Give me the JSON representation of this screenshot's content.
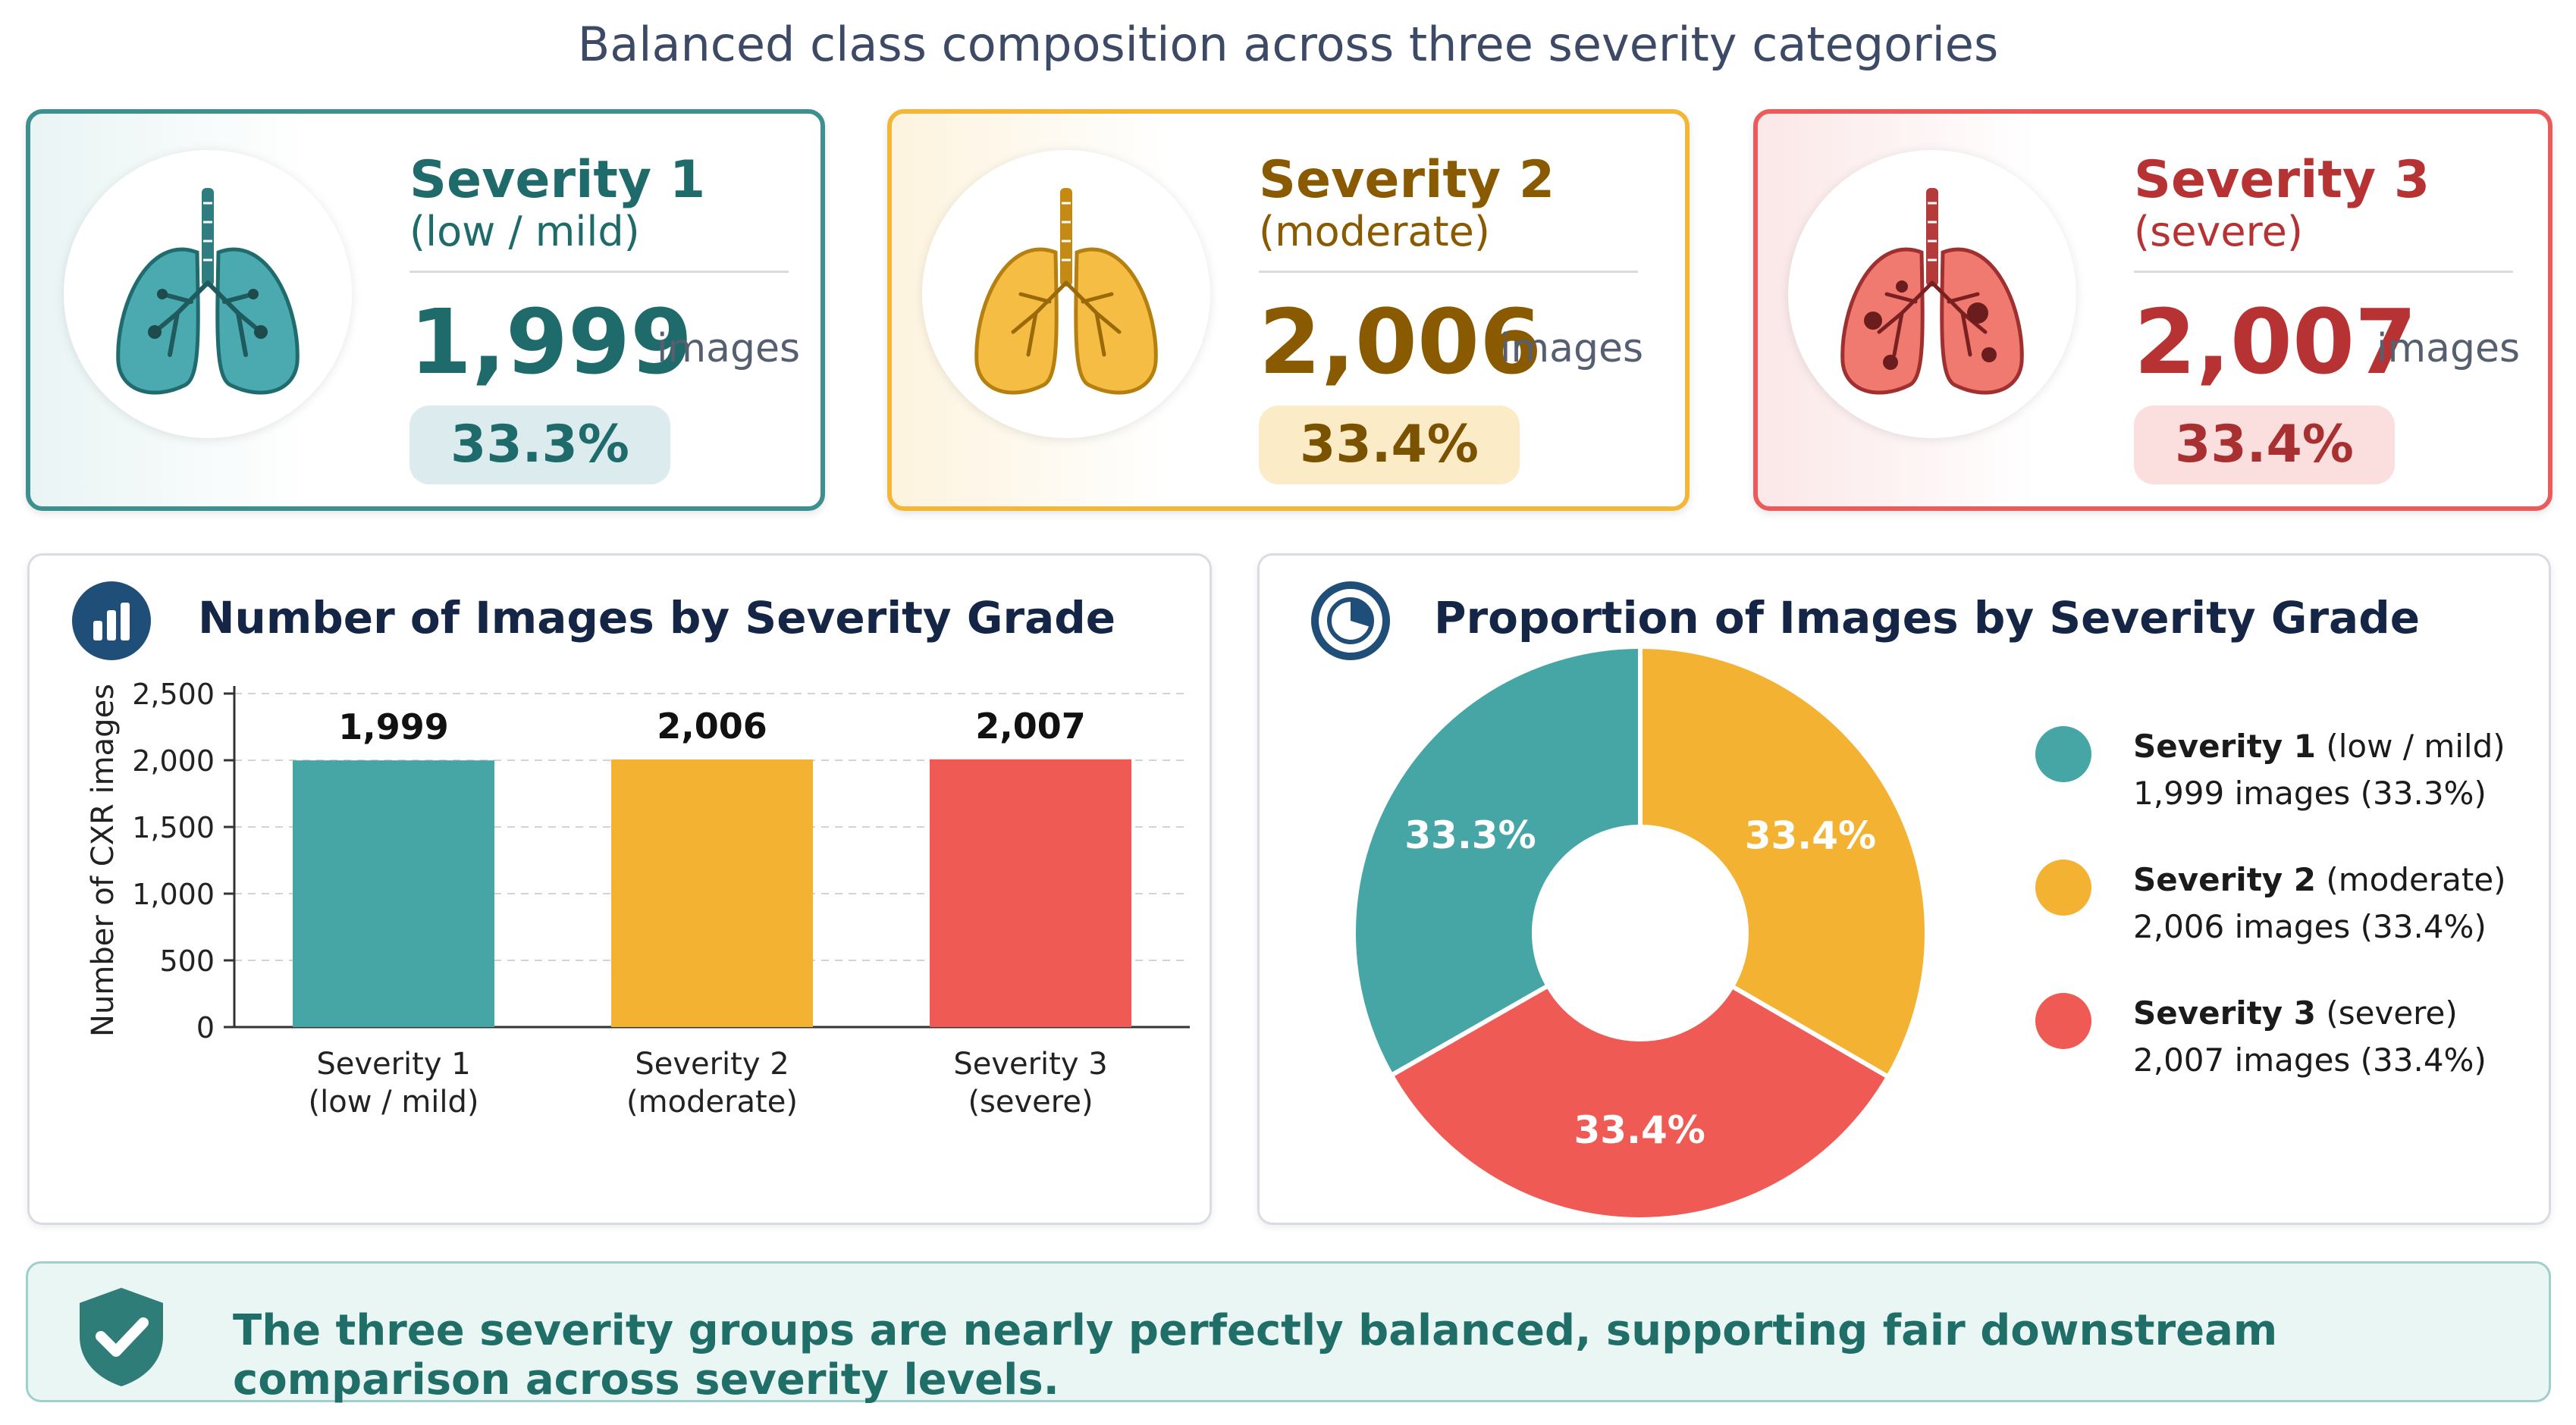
{
  "title": "Balanced class composition across three severity categories",
  "cards": [
    {
      "name": "Severity 1",
      "subtitle": "(low / mild)",
      "count": "1,999",
      "unit": "images",
      "percent": "33.3%",
      "color": "#3e9e9e"
    },
    {
      "name": "Severity 2",
      "subtitle": "(moderate)",
      "count": "2,006",
      "unit": "images",
      "percent": "33.4%",
      "color": "#f2b736"
    },
    {
      "name": "Severity 3",
      "subtitle": "(severe)",
      "count": "2,007",
      "unit": "images",
      "percent": "33.4%",
      "color": "#ef5a55"
    }
  ],
  "bar_panel": {
    "title": "Number of Images by Severity Grade",
    "icon": "bar-chart-icon"
  },
  "pie_panel": {
    "title": "Proportion of Images by Severity Grade",
    "icon": "pie-chart-icon"
  },
  "footer": {
    "text": "The three severity groups are nearly perfectly balanced, supporting fair downstream comparison across severity levels.",
    "icon": "shield-check-icon"
  },
  "chart_data": [
    {
      "type": "bar",
      "title": "Number of Images by Severity Grade",
      "categories": [
        [
          "Severity 1",
          "(low / mild)"
        ],
        [
          "Severity 2",
          "(moderate)"
        ],
        [
          "Severity 3",
          "(severe)"
        ]
      ],
      "values": [
        1999,
        2006,
        2007
      ],
      "value_labels": [
        "1,999",
        "2,006",
        "2,007"
      ],
      "colors": [
        "#46a6a6",
        "#f4b233",
        "#f05a54"
      ],
      "xlabel": "",
      "ylabel": "Number of CXR images",
      "ylim": [
        0,
        2500
      ],
      "yticks": [
        0,
        500,
        1000,
        1500,
        2000,
        2500
      ],
      "ytick_labels": [
        "0",
        "500",
        "1,000",
        "1,500",
        "2,000",
        "2,500"
      ],
      "grid": true
    },
    {
      "type": "pie",
      "title": "Proportion of Images by Severity Grade",
      "donut": true,
      "slices": [
        {
          "label": "Severity 1",
          "value": 33.3,
          "value_label": "33.3%",
          "color": "#46a6a6"
        },
        {
          "label": "Severity 2",
          "value": 33.4,
          "value_label": "33.4%",
          "color": "#f4b233"
        },
        {
          "label": "Severity 3",
          "value": 33.4,
          "value_label": "33.4%",
          "color": "#f05a54"
        }
      ],
      "legend": [
        {
          "name": "Severity 1",
          "desc": "(low / mild)",
          "detail": "1,999 images (33.3%)",
          "color": "#46a6a6"
        },
        {
          "name": "Severity 2",
          "desc": "(moderate)",
          "detail": "2,006 images (33.4%)",
          "color": "#f4b233"
        },
        {
          "name": "Severity 3",
          "desc": "(severe)",
          "detail": "2,007 images (33.4%)",
          "color": "#f05a54"
        }
      ],
      "legend_placement": "right"
    }
  ]
}
